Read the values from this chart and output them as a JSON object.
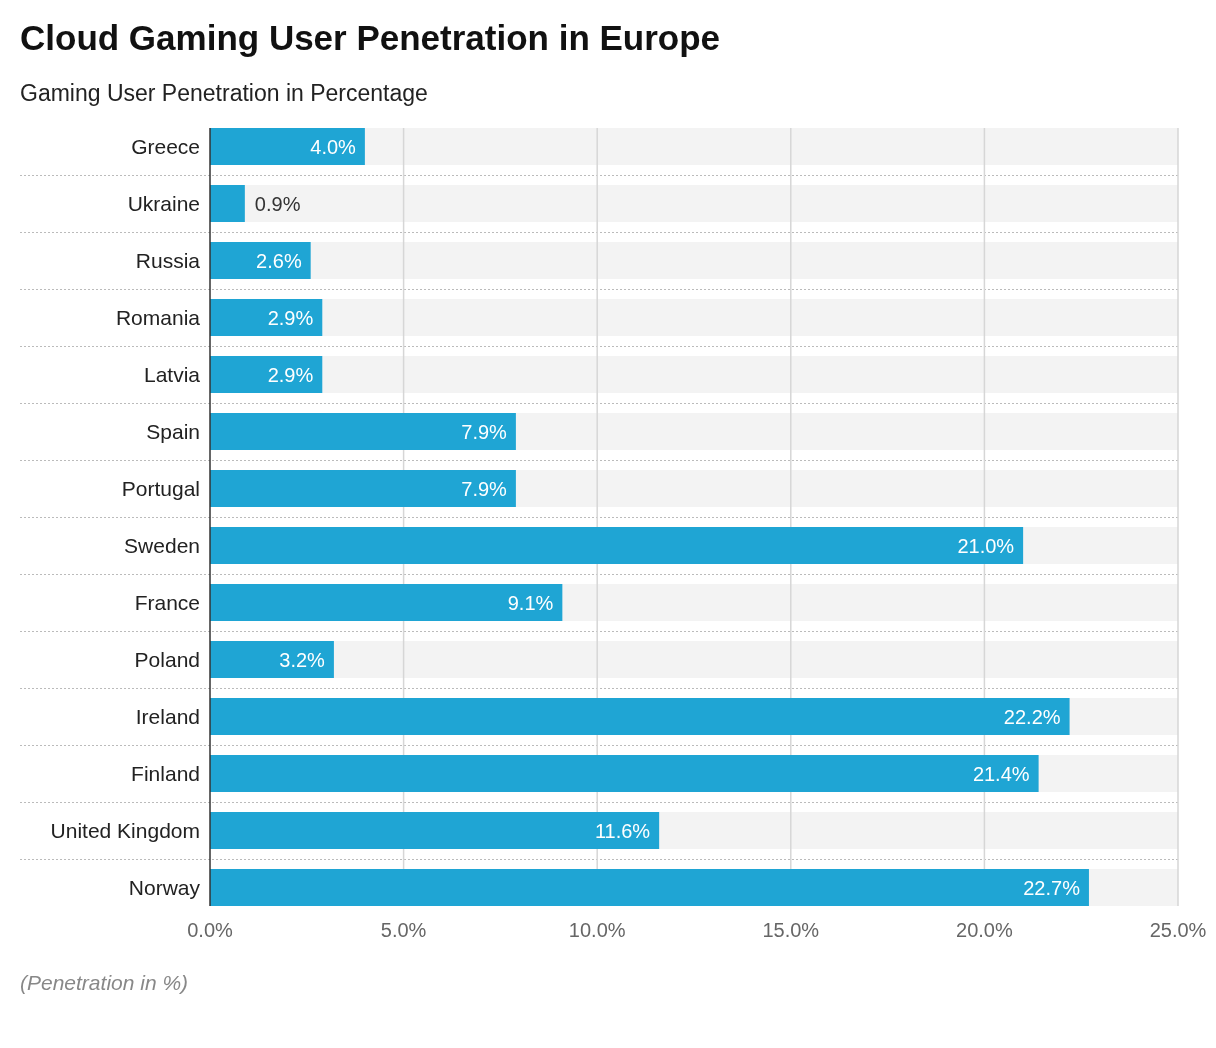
{
  "chart_data": {
    "type": "bar",
    "orientation": "horizontal",
    "title": "Cloud Gaming User Penetration in Europe",
    "subtitle": "Gaming User Penetration in Percentage",
    "categories": [
      "Greece",
      "Ukraine",
      "Russia",
      "Romania",
      "Latvia",
      "Spain",
      "Portugal",
      "Sweden",
      "France",
      "Poland",
      "Ireland",
      "Finland",
      "United Kingdom",
      "Norway"
    ],
    "values": [
      4.0,
      0.9,
      2.6,
      2.9,
      2.9,
      7.9,
      7.9,
      21.0,
      9.1,
      3.2,
      22.2,
      21.4,
      11.6,
      22.7
    ],
    "value_labels": [
      "4.0%",
      "0.9%",
      "2.6%",
      "2.9%",
      "2.9%",
      "7.9%",
      "7.9%",
      "21.0%",
      "9.1%",
      "3.2%",
      "22.2%",
      "21.4%",
      "11.6%",
      "22.7%"
    ],
    "color": "#1fa5d4",
    "xlim": [
      0,
      25
    ],
    "xticks": [
      {
        "value": 0,
        "label": "0.0%"
      },
      {
        "value": 5,
        "label": "5.0%"
      },
      {
        "value": 10,
        "label": "10.0%"
      },
      {
        "value": 15,
        "label": "15.0%"
      },
      {
        "value": 20,
        "label": "20.0%"
      },
      {
        "value": 25,
        "label": "25.0%"
      }
    ],
    "grid": "x",
    "annotations": [
      "(Penetration in %)"
    ]
  }
}
